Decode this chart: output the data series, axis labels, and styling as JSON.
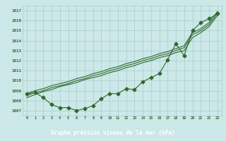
{
  "title": "Graphe pression niveau de la mer (hPa)",
  "xlabel_hours": [
    0,
    1,
    2,
    3,
    4,
    5,
    6,
    7,
    8,
    9,
    10,
    11,
    12,
    13,
    14,
    15,
    16,
    17,
    18,
    19,
    20,
    21,
    22,
    23
  ],
  "series_line1": [
    1008.7,
    1009.0,
    1009.2,
    1009.5,
    1009.7,
    1009.9,
    1010.2,
    1010.4,
    1010.7,
    1010.9,
    1011.2,
    1011.4,
    1011.7,
    1011.9,
    1012.2,
    1012.4,
    1012.7,
    1012.9,
    1013.2,
    1013.5,
    1014.8,
    1015.2,
    1015.8,
    1016.9
  ],
  "series_line2": [
    1008.5,
    1008.8,
    1009.0,
    1009.3,
    1009.5,
    1009.7,
    1010.0,
    1010.2,
    1010.5,
    1010.7,
    1011.0,
    1011.2,
    1011.5,
    1011.7,
    1012.0,
    1012.2,
    1012.5,
    1012.7,
    1013.0,
    1013.3,
    1014.6,
    1015.0,
    1015.6,
    1016.7
  ],
  "series_line3": [
    1008.3,
    1008.6,
    1008.9,
    1009.1,
    1009.4,
    1009.6,
    1009.8,
    1010.1,
    1010.3,
    1010.5,
    1010.8,
    1011.0,
    1011.3,
    1011.5,
    1011.8,
    1012.0,
    1012.3,
    1012.5,
    1012.8,
    1013.0,
    1014.3,
    1014.8,
    1015.4,
    1016.5
  ],
  "series_marker": [
    1008.7,
    1008.8,
    1008.3,
    1007.6,
    1007.3,
    1007.3,
    1007.0,
    1007.2,
    1007.5,
    1008.2,
    1008.7,
    1008.7,
    1009.2,
    1009.1,
    1009.9,
    1010.3,
    1010.7,
    1012.1,
    1013.7,
    1012.5,
    1015.0,
    1015.8,
    1016.2,
    1016.7
  ],
  "ylim": [
    1006.5,
    1017.5
  ],
  "yticks": [
    1007,
    1008,
    1009,
    1010,
    1011,
    1012,
    1013,
    1014,
    1015,
    1016,
    1017
  ],
  "xlim": [
    -0.5,
    23.5
  ],
  "line_color": "#2d6a2d",
  "bg_color": "#cce8e8",
  "grid_color": "#aacccc",
  "title_bg": "#336633",
  "title_fg": "#ffffff",
  "marker_style": "D",
  "marker_size": 2.5,
  "linewidth": 0.8
}
